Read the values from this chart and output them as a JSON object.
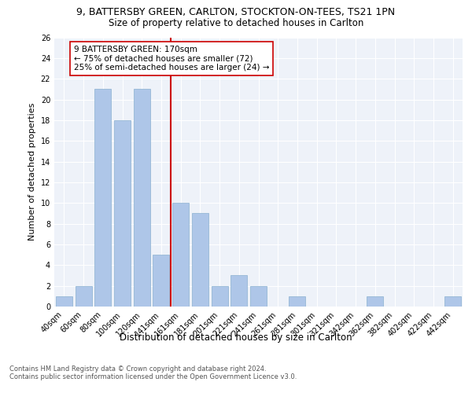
{
  "title_line1": "9, BATTERSBY GREEN, CARLTON, STOCKTON-ON-TEES, TS21 1PN",
  "title_line2": "Size of property relative to detached houses in Carlton",
  "xlabel": "Distribution of detached houses by size in Carlton",
  "ylabel": "Number of detached properties",
  "categories": [
    "40sqm",
    "60sqm",
    "80sqm",
    "100sqm",
    "120sqm",
    "141sqm",
    "161sqm",
    "181sqm",
    "201sqm",
    "221sqm",
    "241sqm",
    "261sqm",
    "281sqm",
    "301sqm",
    "321sqm",
    "342sqm",
    "362sqm",
    "382sqm",
    "402sqm",
    "422sqm",
    "442sqm"
  ],
  "values": [
    1,
    2,
    21,
    18,
    21,
    5,
    10,
    9,
    2,
    3,
    2,
    0,
    1,
    0,
    0,
    0,
    1,
    0,
    0,
    0,
    1
  ],
  "bar_color": "#aec6e8",
  "bar_edge_color": "#8ab0d0",
  "vline_index": 6,
  "vline_color": "#cc0000",
  "annotation_text": "9 BATTERSBY GREEN: 170sqm\n← 75% of detached houses are smaller (72)\n25% of semi-detached houses are larger (24) →",
  "annotation_box_color": "white",
  "annotation_box_edge": "#cc0000",
  "ylim": [
    0,
    26
  ],
  "yticks": [
    0,
    2,
    4,
    6,
    8,
    10,
    12,
    14,
    16,
    18,
    20,
    22,
    24,
    26
  ],
  "footnote": "Contains HM Land Registry data © Crown copyright and database right 2024.\nContains public sector information licensed under the Open Government Licence v3.0.",
  "background_color": "#eef2f9",
  "grid_color": "white",
  "title_fontsize": 9,
  "subtitle_fontsize": 8.5,
  "tick_fontsize": 7,
  "ylabel_fontsize": 8,
  "xlabel_fontsize": 8.5,
  "annotation_fontsize": 7.5,
  "footnote_fontsize": 6
}
